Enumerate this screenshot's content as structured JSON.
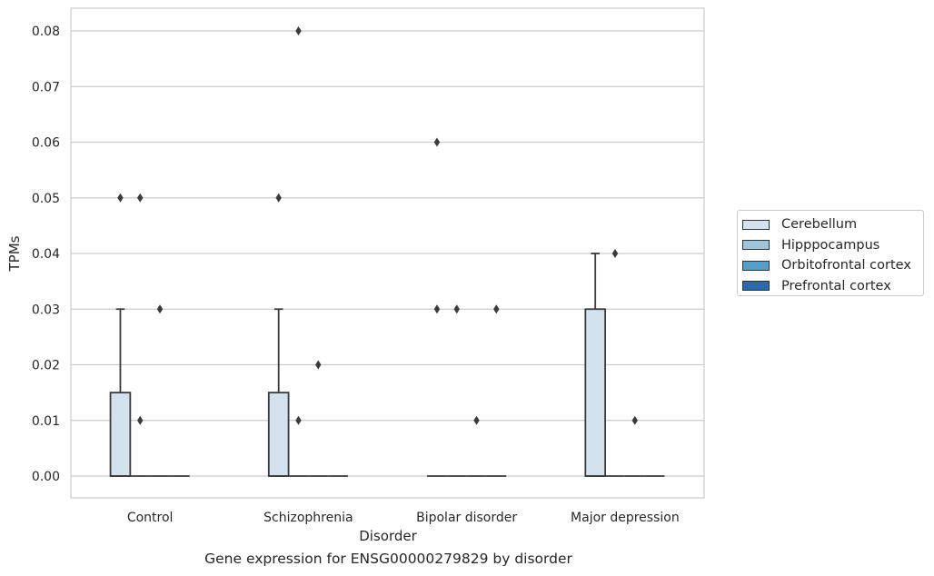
{
  "chart_data": {
    "type": "box",
    "xlabel": "Disorder",
    "ylabel": "TPMs",
    "caption": "Gene expression for ENSG00000279829 by disorder",
    "categories": [
      "Control",
      "Schizophrenia",
      "Bipolar disorder",
      "Major depression"
    ],
    "ylim": [
      -0.004,
      0.084
    ],
    "yticks": [
      "0.00",
      "0.01",
      "0.02",
      "0.03",
      "0.04",
      "0.05",
      "0.06",
      "0.07",
      "0.08"
    ],
    "grid": true,
    "legend_position": "right",
    "series": [
      {
        "name": "Cerebellum",
        "color": "#d4e2f0",
        "boxes": [
          {
            "q1": 0.0,
            "median": 0.0,
            "q3": 0.015,
            "whisker_low": 0.0,
            "whisker_high": 0.03,
            "outliers": [
              0.05
            ]
          },
          {
            "q1": 0.0,
            "median": 0.0,
            "q3": 0.015,
            "whisker_low": 0.0,
            "whisker_high": 0.03,
            "outliers": [
              0.05
            ]
          },
          {
            "q1": 0.0,
            "median": 0.0,
            "q3": 0.0,
            "whisker_low": 0.0,
            "whisker_high": 0.0,
            "outliers": [
              0.06,
              0.03
            ]
          },
          {
            "q1": 0.0,
            "median": 0.0,
            "q3": 0.03,
            "whisker_low": 0.0,
            "whisker_high": 0.04,
            "outliers": []
          }
        ]
      },
      {
        "name": "Hipppocampus",
        "color": "#9ec4db",
        "boxes": [
          {
            "q1": 0.0,
            "median": 0.0,
            "q3": 0.0,
            "whisker_low": 0.0,
            "whisker_high": 0.0,
            "outliers": [
              0.05,
              0.01
            ]
          },
          {
            "q1": 0.0,
            "median": 0.0,
            "q3": 0.0,
            "whisker_low": 0.0,
            "whisker_high": 0.0,
            "outliers": [
              0.08,
              0.01
            ]
          },
          {
            "q1": 0.0,
            "median": 0.0,
            "q3": 0.0,
            "whisker_low": 0.0,
            "whisker_high": 0.0,
            "outliers": [
              0.03
            ]
          },
          {
            "q1": 0.0,
            "median": 0.0,
            "q3": 0.0,
            "whisker_low": 0.0,
            "whisker_high": 0.0,
            "outliers": [
              0.04
            ]
          }
        ]
      },
      {
        "name": "Orbitofrontal cortex",
        "color": "#5b9dc9",
        "boxes": [
          {
            "q1": 0.0,
            "median": 0.0,
            "q3": 0.0,
            "whisker_low": 0.0,
            "whisker_high": 0.0,
            "outliers": [
              0.03
            ]
          },
          {
            "q1": 0.0,
            "median": 0.0,
            "q3": 0.0,
            "whisker_low": 0.0,
            "whisker_high": 0.0,
            "outliers": [
              0.02
            ]
          },
          {
            "q1": 0.0,
            "median": 0.0,
            "q3": 0.0,
            "whisker_low": 0.0,
            "whisker_high": 0.0,
            "outliers": [
              0.01
            ]
          },
          {
            "q1": 0.0,
            "median": 0.0,
            "q3": 0.0,
            "whisker_low": 0.0,
            "whisker_high": 0.0,
            "outliers": [
              0.01
            ]
          }
        ]
      },
      {
        "name": "Prefrontal cortex",
        "color": "#2b6aa8",
        "boxes": [
          {
            "q1": 0.0,
            "median": 0.0,
            "q3": 0.0,
            "whisker_low": 0.0,
            "whisker_high": 0.0,
            "outliers": []
          },
          {
            "q1": 0.0,
            "median": 0.0,
            "q3": 0.0,
            "whisker_low": 0.0,
            "whisker_high": 0.0,
            "outliers": []
          },
          {
            "q1": 0.0,
            "median": 0.0,
            "q3": 0.0,
            "whisker_low": 0.0,
            "whisker_high": 0.0,
            "outliers": [
              0.03
            ]
          },
          {
            "q1": 0.0,
            "median": 0.0,
            "q3": 0.0,
            "whisker_low": 0.0,
            "whisker_high": 0.0,
            "outliers": []
          }
        ]
      }
    ]
  }
}
